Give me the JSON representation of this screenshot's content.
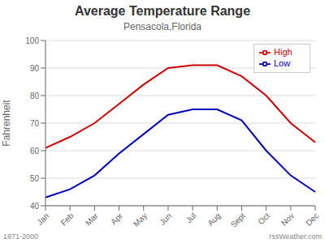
{
  "chart_data": {
    "type": "line",
    "title": "Average Temperature Range",
    "subtitle": "Pensacola,Florida",
    "y_label": "Fahrenheit",
    "annotations": [
      "1971-2000",
      "rssWeather.com"
    ],
    "categories": [
      "Jan",
      "Feb",
      "Mar",
      "Apr",
      "May",
      "Jun",
      "Jul",
      "Aug",
      "Sept",
      "Oct",
      "Nov",
      "Dec"
    ],
    "series": [
      {
        "name": "High",
        "color": "#cc0000",
        "values": [
          61,
          65,
          70,
          77,
          84,
          90,
          91,
          91,
          87,
          80,
          70,
          63
        ]
      },
      {
        "name": "Low",
        "color": "#0000bb",
        "values": [
          43,
          46,
          51,
          59,
          66,
          73,
          75,
          75,
          71,
          60,
          51,
          45
        ]
      }
    ],
    "ylim": [
      40,
      100
    ],
    "yticks": [
      40,
      50,
      60,
      70,
      80,
      90,
      100
    ],
    "grid": true,
    "legend": "upper right"
  }
}
